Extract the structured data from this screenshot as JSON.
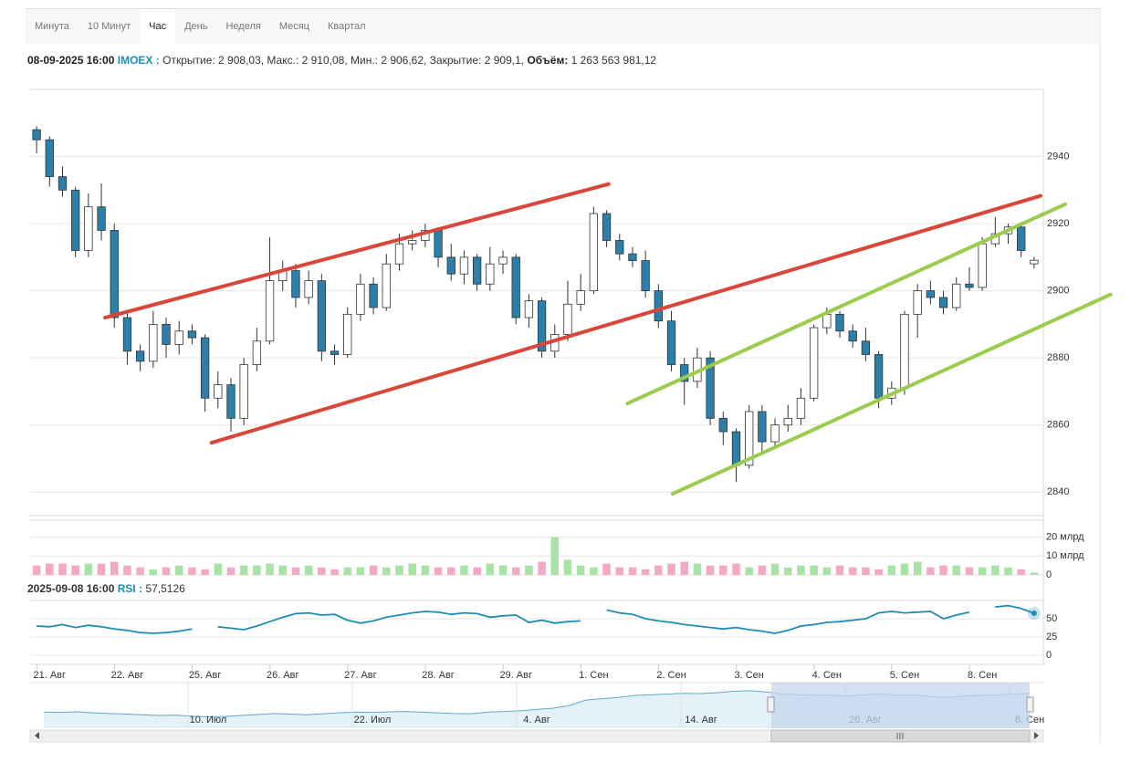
{
  "tabs": [
    "Минута",
    "10 Минут",
    "Час",
    "День",
    "Неделя",
    "Месяц",
    "Квартал"
  ],
  "active_tab": 2,
  "info": {
    "datetime": "08-09-2025 16:00",
    "ticker": "IMOEX :",
    "details": "Открытие: 2 908,03, Макс.: 2 910,08, Мин.: 2 906,62, Закрытие: 2 909,1,",
    "volume_label": "Объём:",
    "volume_value": "1 263 563 981,12"
  },
  "chart_data": {
    "type": "candlestick",
    "categories": [
      null,
      "21. Авг",
      null,
      null,
      null,
      null,
      null,
      "22. Авг",
      null,
      null,
      null,
      null,
      null,
      "25. Авг",
      null,
      null,
      null,
      null,
      null,
      "26. Авг",
      null,
      null,
      null,
      null,
      null,
      "27. Авг",
      null,
      null,
      null,
      null,
      null,
      "28. Авг",
      null,
      null,
      null,
      null,
      null,
      "29. Авг",
      null,
      null,
      null,
      null,
      null,
      "1. Сен",
      null,
      null,
      null,
      null,
      null,
      "2. Сен",
      null,
      null,
      null,
      null,
      null,
      "3. Сен",
      null,
      null,
      null,
      null,
      null,
      "4. Сен",
      null,
      null,
      null,
      null,
      null,
      "5. Сен",
      null,
      null,
      null,
      null,
      null,
      "8. Сен",
      null,
      null,
      null,
      null
    ],
    "candles": [
      [
        2948,
        2949,
        2941,
        2945
      ],
      [
        2945,
        2946,
        2931,
        2934
      ],
      [
        2934,
        2937,
        2928,
        2930
      ],
      [
        2930,
        2931,
        2910,
        2912
      ],
      [
        2912,
        2929,
        2910,
        2925
      ],
      [
        2925,
        2932,
        2915,
        2918
      ],
      [
        2918,
        2920,
        2889,
        2892
      ],
      [
        2892,
        2894,
        2878,
        2882
      ],
      [
        2882,
        2884,
        2876,
        2879
      ],
      [
        2879,
        2894,
        2877,
        2890
      ],
      [
        2890,
        2892,
        2880,
        2884
      ],
      [
        2884,
        2891,
        2881,
        2888
      ],
      [
        2888,
        2890,
        2884,
        2886
      ],
      [
        2886,
        2887,
        2864,
        2868
      ],
      [
        2868,
        2876,
        2865,
        2872
      ],
      [
        2872,
        2874,
        2858,
        2862
      ],
      [
        2862,
        2880,
        2860,
        2878
      ],
      [
        2878,
        2889,
        2876,
        2885
      ],
      [
        2885,
        2916,
        2884,
        2903
      ],
      [
        2903,
        2909,
        2900,
        2906
      ],
      [
        2906,
        2908,
        2895,
        2898
      ],
      [
        2898,
        2906,
        2896,
        2903
      ],
      [
        2903,
        2905,
        2879,
        2882
      ],
      [
        2882,
        2884,
        2878,
        2881
      ],
      [
        2881,
        2895,
        2880,
        2893
      ],
      [
        2893,
        2905,
        2891,
        2902
      ],
      [
        2902,
        2904,
        2893,
        2895
      ],
      [
        2895,
        2911,
        2894,
        2908
      ],
      [
        2908,
        2917,
        2906,
        2914
      ],
      [
        2914,
        2918,
        2912,
        2915
      ],
      [
        2915,
        2920,
        2913,
        2918
      ],
      [
        2918,
        2919,
        2907,
        2910
      ],
      [
        2910,
        2914,
        2903,
        2905
      ],
      [
        2905,
        2912,
        2902,
        2910
      ],
      [
        2910,
        2911,
        2900,
        2902
      ],
      [
        2902,
        2913,
        2900,
        2908
      ],
      [
        2908,
        2912,
        2905,
        2910
      ],
      [
        2910,
        2911,
        2890,
        2892
      ],
      [
        2892,
        2899,
        2889,
        2897
      ],
      [
        2897,
        2898,
        2880,
        2882
      ],
      [
        2882,
        2890,
        2880,
        2887
      ],
      [
        2887,
        2903,
        2885,
        2896
      ],
      [
        2896,
        2905,
        2894,
        2900
      ],
      [
        2900,
        2925,
        2899,
        2923
      ],
      [
        2923,
        2924,
        2913,
        2915
      ],
      [
        2915,
        2917,
        2909,
        2911
      ],
      [
        2911,
        2913,
        2907,
        2909
      ],
      [
        2909,
        2912,
        2898,
        2900
      ],
      [
        2900,
        2902,
        2889,
        2891
      ],
      [
        2891,
        2894,
        2876,
        2878
      ],
      [
        2878,
        2880,
        2866,
        2873
      ],
      [
        2873,
        2883,
        2871,
        2880
      ],
      [
        2880,
        2882,
        2860,
        2862
      ],
      [
        2862,
        2864,
        2854,
        2858
      ],
      [
        2858,
        2859,
        2843,
        2848
      ],
      [
        2848,
        2866,
        2847,
        2864
      ],
      [
        2864,
        2866,
        2852,
        2855
      ],
      [
        2855,
        2862,
        2853,
        2860
      ],
      [
        2860,
        2866,
        2858,
        2862
      ],
      [
        2862,
        2871,
        2860,
        2868
      ],
      [
        2868,
        2890,
        2867,
        2889
      ],
      [
        2889,
        2895,
        2887,
        2893
      ],
      [
        2893,
        2894,
        2886,
        2888
      ],
      [
        2888,
        2890,
        2883,
        2885
      ],
      [
        2885,
        2889,
        2879,
        2881
      ],
      [
        2881,
        2882,
        2865,
        2868
      ],
      [
        2868,
        2873,
        2866,
        2871
      ],
      [
        2871,
        2894,
        2869,
        2893
      ],
      [
        2893,
        2902,
        2886,
        2900
      ],
      [
        2900,
        2903,
        2896,
        2898
      ],
      [
        2898,
        2900,
        2893,
        2895
      ],
      [
        2895,
        2904,
        2894,
        2902
      ],
      [
        2902,
        2907,
        2900,
        2901
      ],
      [
        2901,
        2916,
        2900,
        2914
      ],
      [
        2914,
        2922,
        2913,
        2917
      ],
      [
        2917,
        2920,
        2914,
        2919
      ],
      [
        2919,
        2920,
        2910,
        2912
      ],
      [
        2908.03,
        2910.08,
        2906.62,
        2909.1
      ]
    ],
    "up_color": "#ffffff",
    "down_color": "#2b7fab",
    "wick_color": "#333333",
    "ylim": [
      2833,
      2960
    ],
    "yticks": [
      2840,
      2860,
      2880,
      2900,
      2920,
      2940
    ],
    "grid": true,
    "trendlines": [
      {
        "color": "#d9473b",
        "points": [
          [
            5.28,
            2892.0
          ],
          [
            44.16,
            2931.8
          ]
        ]
      },
      {
        "color": "#d9473b",
        "points": [
          [
            13.5,
            2854.7
          ],
          [
            77.5,
            2928.3
          ]
        ]
      },
      {
        "color": "#9ccc4e",
        "points": [
          [
            45.6,
            2866.4
          ],
          [
            79.4,
            2925.8
          ]
        ]
      },
      {
        "color": "#9ccc4e",
        "points": [
          [
            49.1,
            2839.5
          ],
          [
            82.9,
            2898.9
          ]
        ]
      }
    ],
    "volume": {
      "values": [
        5,
        6,
        6,
        5,
        6,
        6,
        7,
        5,
        4,
        3,
        4,
        5,
        4,
        3,
        6,
        4,
        5,
        5,
        6,
        5,
        4,
        5,
        4,
        3,
        4,
        4,
        5,
        4,
        5,
        6,
        5,
        4,
        4,
        5,
        4,
        6,
        5,
        4,
        5,
        7,
        20,
        8,
        5,
        4,
        6,
        4,
        4,
        3,
        5,
        6,
        7,
        6,
        5,
        5,
        6,
        4,
        5,
        6,
        4,
        5,
        5,
        4,
        5,
        4,
        4,
        3,
        5,
        6,
        7,
        4,
        5,
        5,
        4,
        4,
        5,
        4,
        3,
        1.26
      ],
      "up_color": "#a8e2a4",
      "down_color": "#f3a9c4",
      "ylim": [
        0,
        29
      ],
      "yticks": [
        0,
        {
          "value": 10,
          "label": "10 млрд"
        },
        {
          "value": 20,
          "label": "20 млрд"
        }
      ]
    },
    "rsi": {
      "datetime": "2025-09-08 16:00",
      "name": "RSI :",
      "value_label": "57,5126",
      "color": "#1f8db3",
      "values": [
        40,
        39,
        42,
        38,
        41,
        39,
        36,
        34,
        31,
        30,
        31,
        33,
        36,
        null,
        39,
        37,
        35,
        40,
        46,
        52,
        57,
        58,
        55,
        56,
        48,
        44,
        47,
        52,
        55,
        58,
        60,
        59,
        56,
        58,
        57,
        52,
        54,
        55,
        45,
        48,
        44,
        46,
        47,
        null,
        62,
        58,
        56,
        50,
        47,
        45,
        42,
        40,
        38,
        36,
        38,
        35,
        33,
        30,
        34,
        40,
        42,
        45,
        46,
        48,
        50,
        58,
        60,
        58,
        59,
        60,
        50,
        55,
        59,
        null,
        66,
        68,
        64,
        57.5126
      ],
      "ylim": [
        0,
        75
      ],
      "yticks": [
        0,
        25,
        50
      ]
    },
    "navigator": {
      "categories": [
        null,
        null,
        null,
        null,
        null,
        null,
        null,
        null,
        null,
        null,
        "10. Июл",
        null,
        null,
        null,
        null,
        null,
        null,
        null,
        null,
        null,
        "22. Июл",
        null,
        null,
        null,
        null,
        null,
        null,
        null,
        null,
        null,
        "4. Авг",
        null,
        null,
        null,
        null,
        null,
        null,
        null,
        null,
        null,
        "14. Авг",
        null,
        null,
        null,
        null,
        null,
        null,
        null,
        null,
        null,
        "26. Авг",
        null,
        null,
        null,
        null,
        null,
        null,
        null,
        null,
        null,
        "8. Сен"
      ],
      "values": [
        2770,
        2768,
        2772,
        2765,
        2760,
        2755,
        2750,
        2745,
        2748,
        2740,
        2735,
        2738,
        2745,
        2752,
        2760,
        2755,
        2750,
        2758,
        2765,
        2770,
        2768,
        2772,
        2775,
        2770,
        2765,
        2760,
        2758,
        2770,
        2775,
        2780,
        2790,
        2800,
        2820,
        2860,
        2870,
        2880,
        2895,
        2900,
        2905,
        2910,
        2908,
        2915,
        2925,
        2930,
        2920,
        2905,
        2900,
        2898,
        2895,
        2890,
        2900,
        2905,
        2895,
        2900,
        2885,
        2880,
        2890,
        2895,
        2898,
        2905,
        2909
      ],
      "ylim": [
        2650,
        2990
      ],
      "color": "#5fa9c9"
    }
  }
}
